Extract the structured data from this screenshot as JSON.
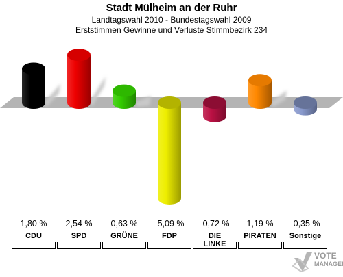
{
  "header": {
    "title": "Stadt Mülheim an der Ruhr",
    "subtitle1": "Landtagswahl 2010 - Bundestagswahl 2009",
    "subtitle2": "Erststimmen Gewinne und Verluste Stimmbezirk 234"
  },
  "chart_data": {
    "type": "bar",
    "categories": [
      "CDU",
      "SPD",
      "GRÜNE",
      "FDP",
      "DIE LINKE",
      "PIRATEN",
      "Sonstige"
    ],
    "values": [
      1.8,
      2.54,
      0.63,
      -5.09,
      -0.72,
      1.19,
      -0.35
    ],
    "value_labels": [
      "1,80 %",
      "2,54 %",
      "0,63 %",
      "-5,09 %",
      "-0,72 %",
      "1,19 %",
      "-0,35 %"
    ],
    "colors": [
      "#000000",
      "#ee0000",
      "#33cc00",
      "#eeee00",
      "#bb1144",
      "#ff8800",
      "#8899cc"
    ],
    "grid": false,
    "legend": "none"
  },
  "logo": {
    "line1": "VOTE",
    "line2": "MANAGER",
    "icon": "vote-manager-logo-icon"
  }
}
